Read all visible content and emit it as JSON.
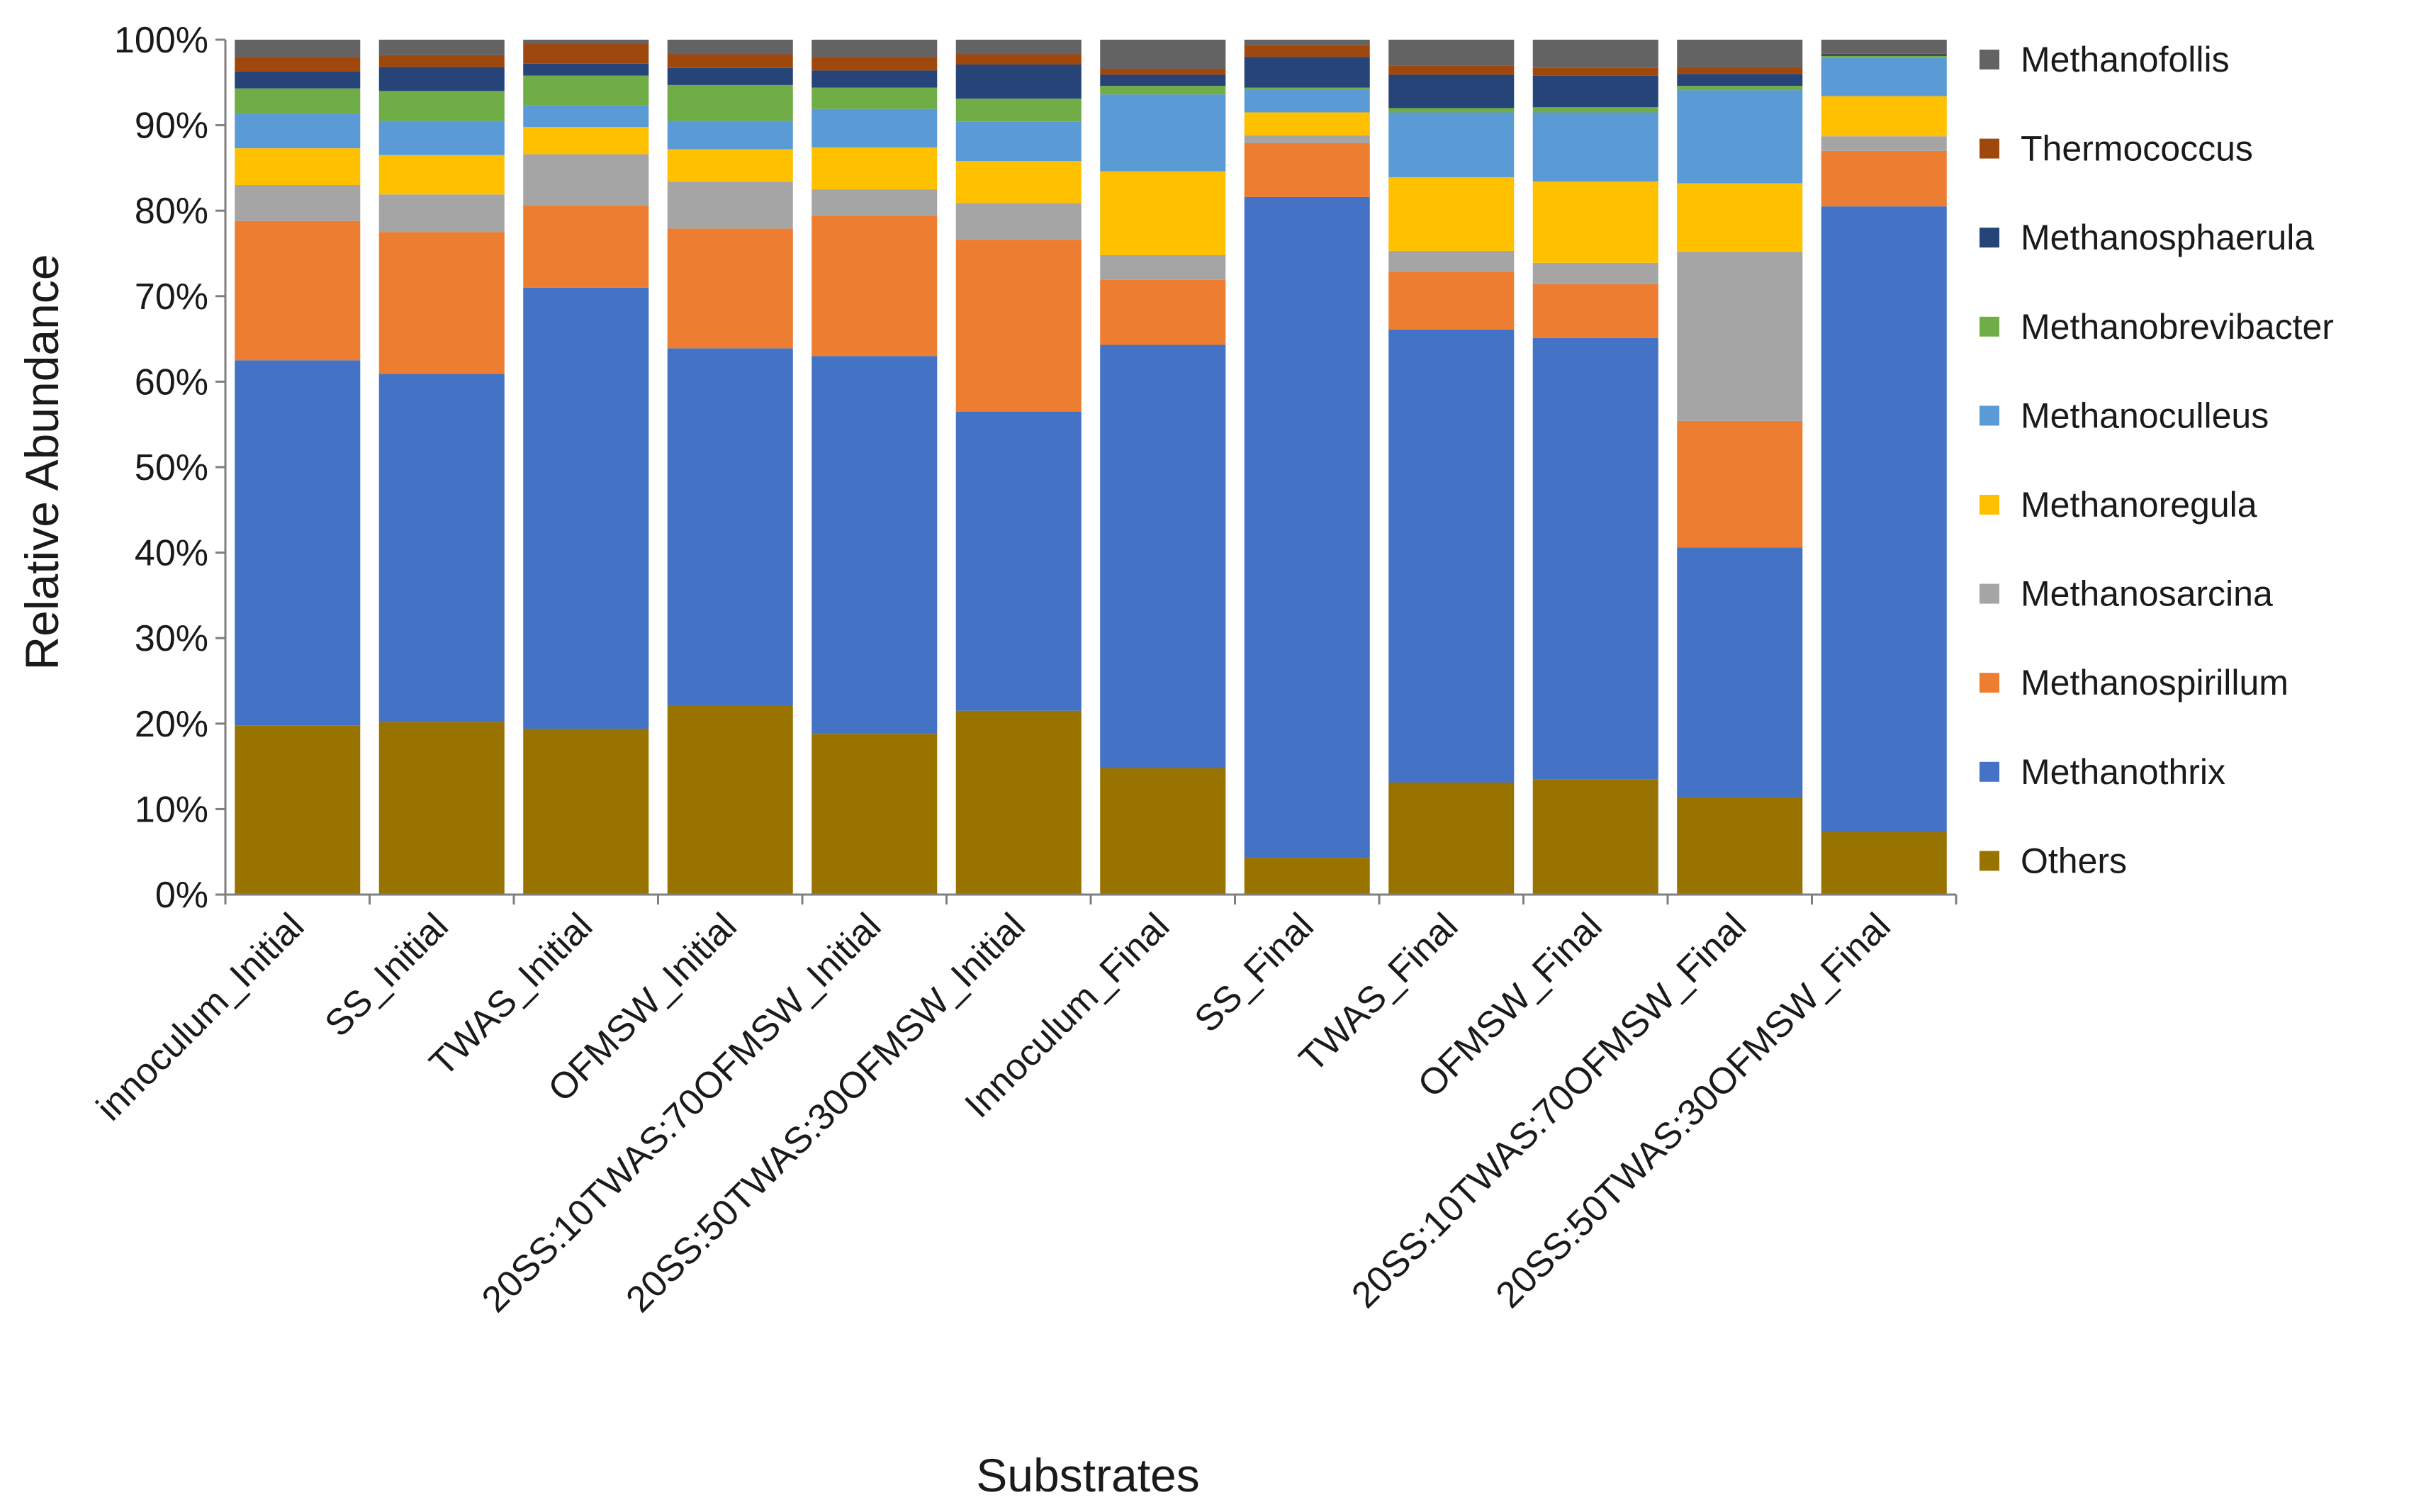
{
  "chart_data": {
    "type": "bar",
    "stacked": true,
    "normalized_percent": true,
    "title": "",
    "xlabel": "Substrates",
    "ylabel": "Relative Abundance",
    "ylim": [
      0,
      100
    ],
    "yticks": [
      "0%",
      "10%",
      "20%",
      "30%",
      "40%",
      "50%",
      "60%",
      "70%",
      "80%",
      "90%",
      "100%"
    ],
    "grid": false,
    "legend_position": "right",
    "categories": [
      "innoculum_Initial",
      "SS_Initial",
      "TWAS_Initial",
      "OFMSW_Initial",
      "20SS:10TWAS:70OFMSW_Initial",
      "20SS:50TWAS:30OFMSW_Initial",
      "Innoculum_Final",
      "SS_Final",
      "TWAS_Final",
      "OFMSW_Final",
      "20SS:10TWAS:70OFMSW_Final",
      "20SS:50TWAS:30OFMSW_Final"
    ],
    "series": [
      {
        "name": "Others",
        "color": "#997300",
        "values": [
          19.8,
          20.2,
          19.4,
          22.1,
          18.8,
          21.5,
          14.8,
          4.3,
          13.1,
          13.5,
          11.4,
          7.3
        ]
      },
      {
        "name": "Methanothrix",
        "color": "#4472C4",
        "values": [
          42.7,
          40.7,
          51.6,
          41.8,
          44.2,
          35.0,
          49.5,
          77.3,
          53.0,
          51.6,
          29.2,
          73.2
        ]
      },
      {
        "name": "Methanospirillum",
        "color": "#ED7D31",
        "values": [
          16.3,
          16.6,
          9.6,
          14.0,
          16.4,
          20.1,
          7.6,
          6.3,
          6.8,
          6.3,
          14.8,
          6.5
        ]
      },
      {
        "name": "Methanosarcina",
        "color": "#A5A5A5",
        "values": [
          4.2,
          4.4,
          6.0,
          5.5,
          3.1,
          4.3,
          2.9,
          0.9,
          2.4,
          2.5,
          19.8,
          1.7
        ]
      },
      {
        "name": "Methanoregula",
        "color": "#FFC000",
        "values": [
          4.3,
          4.6,
          3.2,
          3.8,
          4.9,
          4.9,
          9.8,
          2.7,
          8.6,
          9.5,
          8.0,
          4.7
        ]
      },
      {
        "name": "Methanoculleus",
        "color": "#5B9BD5",
        "values": [
          4.0,
          4.0,
          2.5,
          3.3,
          4.5,
          4.6,
          9.0,
          2.7,
          7.6,
          8.1,
          10.9,
          4.5
        ]
      },
      {
        "name": "Methanobrevibacter",
        "color": "#70AD47",
        "values": [
          3.0,
          3.5,
          3.5,
          4.2,
          2.5,
          2.7,
          1.0,
          0.2,
          0.5,
          0.6,
          0.5,
          0.2
        ]
      },
      {
        "name": "Methanosphaerula",
        "color": "#264478",
        "values": [
          2.0,
          2.8,
          1.4,
          2.0,
          2.0,
          4.0,
          1.3,
          3.6,
          3.9,
          3.7,
          1.4,
          0.2
        ]
      },
      {
        "name": "Thermococcus",
        "color": "#9E480E",
        "values": [
          1.7,
          1.4,
          2.3,
          1.6,
          1.6,
          1.2,
          0.7,
          1.4,
          1.1,
          0.9,
          0.8,
          0.1
        ]
      },
      {
        "name": "Methanofollis",
        "color": "#636363",
        "values": [
          2.0,
          1.8,
          0.5,
          1.7,
          2.0,
          1.7,
          3.4,
          0.6,
          3.0,
          3.3,
          3.2,
          1.6
        ]
      }
    ]
  }
}
